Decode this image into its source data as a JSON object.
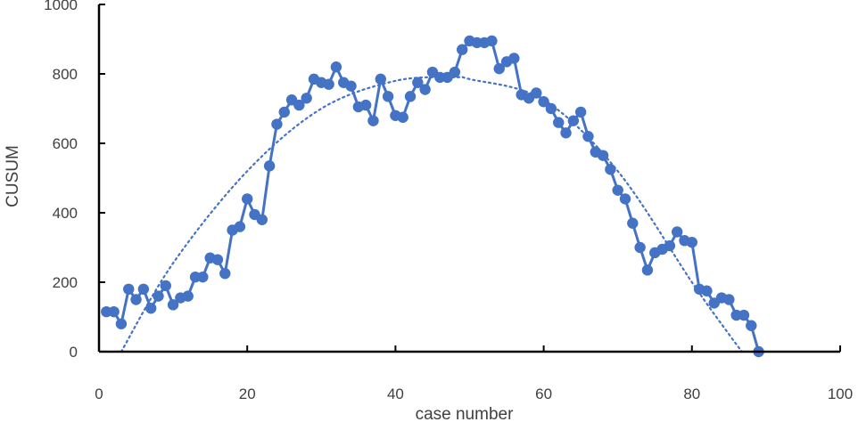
{
  "chart_data": {
    "type": "line",
    "xlabel": "case number",
    "ylabel": "CUSUM",
    "xlim": [
      0,
      100
    ],
    "ylim": [
      0,
      1000
    ],
    "x_ticks": [
      0,
      20,
      40,
      60,
      80,
      100
    ],
    "y_ticks": [
      0,
      200,
      400,
      600,
      800,
      1000
    ],
    "grid": false,
    "legend": "none",
    "series": [
      {
        "style": "solid-line-with-markers",
        "color": "#4472C4",
        "x": [
          1,
          2,
          3,
          4,
          5,
          6,
          7,
          8,
          9,
          10,
          11,
          12,
          13,
          14,
          15,
          16,
          17,
          18,
          19,
          20,
          21,
          22,
          23,
          24,
          25,
          26,
          27,
          28,
          29,
          30,
          31,
          32,
          33,
          34,
          35,
          36,
          37,
          38,
          39,
          40,
          41,
          42,
          43,
          44,
          45,
          46,
          47,
          48,
          49,
          50,
          51,
          52,
          53,
          54,
          55,
          56,
          57,
          58,
          59,
          60,
          61,
          62,
          63,
          64,
          65,
          66,
          67,
          68,
          69,
          70,
          71,
          72,
          73,
          74,
          75,
          76,
          77,
          78,
          79,
          80,
          81,
          82,
          83,
          84,
          85,
          86,
          87,
          88,
          89
        ],
        "y": [
          115,
          115,
          80,
          180,
          150,
          180,
          125,
          160,
          190,
          135,
          155,
          160,
          215,
          215,
          270,
          265,
          225,
          350,
          360,
          440,
          395,
          380,
          535,
          655,
          690,
          725,
          710,
          730,
          785,
          775,
          770,
          820,
          775,
          765,
          705,
          710,
          665,
          785,
          735,
          680,
          675,
          735,
          775,
          755,
          805,
          790,
          790,
          805,
          870,
          895,
          890,
          890,
          895,
          815,
          835,
          845,
          740,
          730,
          745,
          720,
          700,
          660,
          630,
          665,
          690,
          620,
          575,
          565,
          525,
          465,
          440,
          370,
          300,
          235,
          285,
          295,
          305,
          345,
          320,
          315,
          180,
          175,
          140,
          155,
          150,
          105,
          105,
          75,
          0
        ]
      },
      {
        "style": "dotted-trend",
        "color": "#4472C4",
        "x": [
          3,
          10,
          20,
          30,
          40,
          48,
          50,
          60,
          70,
          80,
          85,
          88
        ],
        "y": [
          0,
          255,
          520,
          700,
          780,
          790,
          785,
          725,
          520,
          200,
          50,
          -35
        ]
      }
    ]
  }
}
